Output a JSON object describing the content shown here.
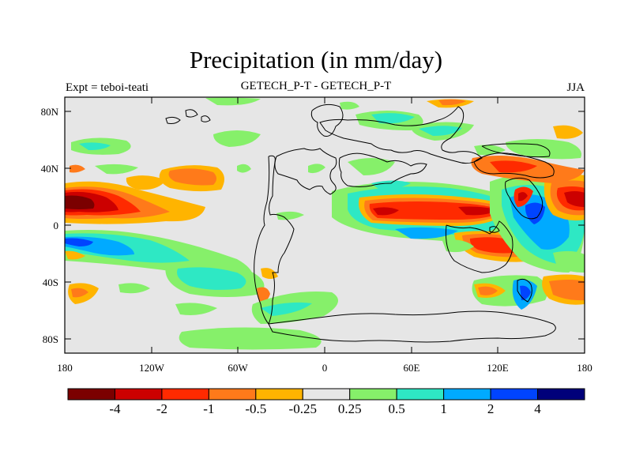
{
  "title": "Precipitation (in mm/day)",
  "subtitle_left": "Expt = teboi-teati",
  "subtitle_center": "GETECH_P-T - GETECH_P-T",
  "subtitle_right": "JJA",
  "y_ticks": [
    "80N",
    "40N",
    "0",
    "40S",
    "80S"
  ],
  "x_ticks": [
    "180",
    "120W",
    "60W",
    "0",
    "60E",
    "120E",
    "180"
  ],
  "colorbar": {
    "colors": [
      "#7b0000",
      "#cc0000",
      "#ff2a00",
      "#ff7a1a",
      "#ffb400",
      "#e6e6e6",
      "#86f06a",
      "#2ee8c4",
      "#00aaff",
      "#0044ff",
      "#00007a"
    ],
    "labels": [
      "-4",
      "-2",
      "-1",
      "-0.5",
      "-0.25",
      "0.25",
      "0.5",
      "1",
      "2",
      "4"
    ]
  },
  "chart_data": {
    "type": "heatmap",
    "title": "Precipitation (in mm/day)",
    "variable": "Precipitation difference (mm/day)",
    "xlim": [
      -180,
      180
    ],
    "ylim": [
      -90,
      90
    ],
    "x_ticks": [
      -180,
      -120,
      -60,
      0,
      60,
      120,
      180
    ],
    "y_ticks": [
      80,
      40,
      0,
      -40,
      -80
    ],
    "levels": [
      -4,
      -2,
      -1,
      -0.5,
      -0.25,
      0.25,
      0.5,
      1,
      2,
      4
    ],
    "anomalies": [
      {
        "lon": -165,
        "lat": 18,
        "value": -4
      },
      {
        "lon": -150,
        "lat": 17,
        "value": -2
      },
      {
        "lon": -150,
        "lat": -12,
        "value": 2
      },
      {
        "lon": -90,
        "lat": 35,
        "value": -1
      },
      {
        "lon": -60,
        "lat": -35,
        "value": 1
      },
      {
        "lon": 55,
        "lat": 8,
        "value": -2
      },
      {
        "lon": 95,
        "lat": 10,
        "value": -2
      },
      {
        "lon": 105,
        "lat": -15,
        "value": -2
      },
      {
        "lon": 140,
        "lat": 5,
        "value": 2
      },
      {
        "lon": 150,
        "lat": 15,
        "value": 1
      },
      {
        "lon": 165,
        "lat": 17,
        "value": -4
      },
      {
        "lon": 168,
        "lat": -45,
        "value": -1
      },
      {
        "lon": 130,
        "lat": -50,
        "value": 2
      },
      {
        "lon": 90,
        "lat": 70,
        "value": 1
      }
    ]
  }
}
